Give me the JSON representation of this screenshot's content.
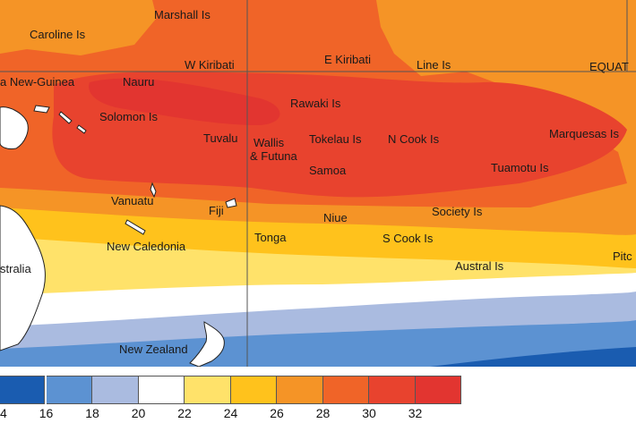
{
  "map": {
    "colors": {
      "c16": "#1a5cb0",
      "c18": "#5c92d2",
      "c20": "#aabbe0",
      "c22": "#ffffff",
      "c24": "#ffe26a",
      "c26": "#ffc21c",
      "c28": "#f59426",
      "c30": "#f06428",
      "c32": "#e8432e",
      "c32plus": "#e23530",
      "land": "#ffffff",
      "coast": "#222222",
      "gridline": "#555555"
    },
    "labels": [
      {
        "id": "marshall-is",
        "text": "Marshall Is"
      },
      {
        "id": "caroline-is",
        "text": "Caroline Is"
      },
      {
        "id": "w-kiribati",
        "text": "W Kiribati"
      },
      {
        "id": "e-kiribati",
        "text": "E Kiribati"
      },
      {
        "id": "line-is",
        "text": "Line Is"
      },
      {
        "id": "equator",
        "text": "EQUAT"
      },
      {
        "id": "papua-new-guinea",
        "text": "a New-Guinea"
      },
      {
        "id": "nauru",
        "text": "Nauru"
      },
      {
        "id": "rawaki-is",
        "text": "Rawaki Is"
      },
      {
        "id": "solomon-is",
        "text": "Solomon Is"
      },
      {
        "id": "tuvalu",
        "text": "Tuvalu"
      },
      {
        "id": "wallis",
        "text": "Wallis"
      },
      {
        "id": "futuna",
        "text": "& Futuna"
      },
      {
        "id": "tokelau-is",
        "text": "Tokelau Is"
      },
      {
        "id": "n-cook-is",
        "text": "N Cook Is"
      },
      {
        "id": "marquesas-is",
        "text": "Marquesas Is"
      },
      {
        "id": "samoa",
        "text": "Samoa"
      },
      {
        "id": "tuamotu-is",
        "text": "Tuamotu Is"
      },
      {
        "id": "vanuatu",
        "text": "Vanuatu"
      },
      {
        "id": "fiji",
        "text": "Fiji"
      },
      {
        "id": "niue",
        "text": "Niue"
      },
      {
        "id": "society-is",
        "text": "Society Is"
      },
      {
        "id": "new-caledonia",
        "text": "New Caledonia"
      },
      {
        "id": "tonga",
        "text": "Tonga"
      },
      {
        "id": "s-cook-is",
        "text": "S Cook Is"
      },
      {
        "id": "australia",
        "text": "stralia"
      },
      {
        "id": "austral-is",
        "text": "Austral Is"
      },
      {
        "id": "pitcairn",
        "text": "Pitc"
      },
      {
        "id": "new-zealand",
        "text": "New Zealand"
      }
    ]
  },
  "legend": {
    "swatch_colors": [
      "#1a5cb0",
      "#5c92d2",
      "#aabbe0",
      "#ffffff",
      "#ffe26a",
      "#ffc21c",
      "#f59426",
      "#f06428",
      "#e8432e",
      "#e23530"
    ],
    "ticks": [
      "4",
      "16",
      "18",
      "20",
      "22",
      "24",
      "26",
      "28",
      "30",
      "32"
    ]
  }
}
